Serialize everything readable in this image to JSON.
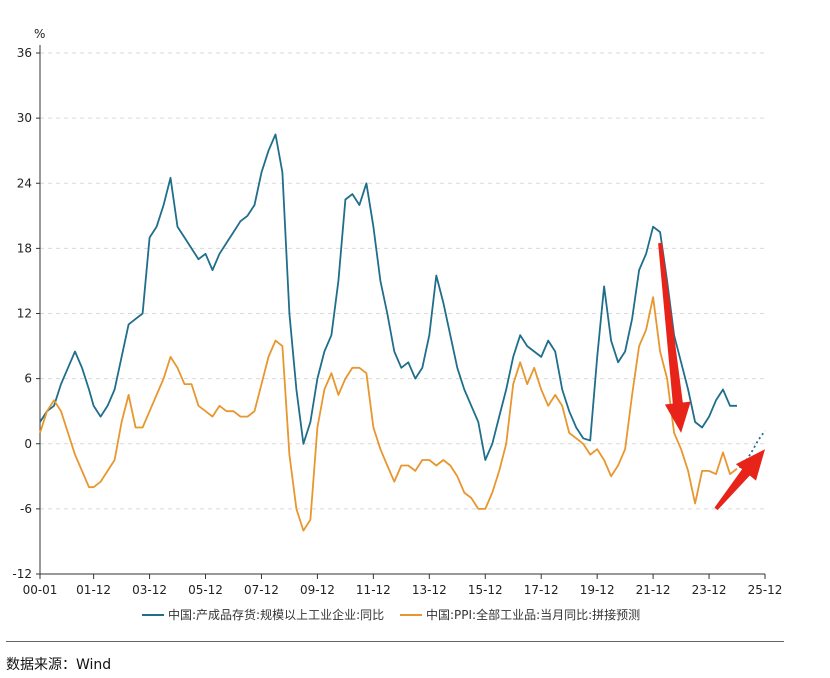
{
  "source": "数据来源：Wind",
  "chart_data": {
    "type": "line",
    "ylabel": "%",
    "ylim": [
      -12,
      36
    ],
    "yticks": [
      -12,
      -6,
      0,
      6,
      12,
      18,
      24,
      30,
      36
    ],
    "xlim": [
      "00-01",
      "25-12"
    ],
    "xticks": [
      "00-01",
      "01-12",
      "03-12",
      "05-12",
      "07-12",
      "09-12",
      "11-12",
      "13-12",
      "15-12",
      "17-12",
      "19-12",
      "21-12",
      "23-12",
      "25-12"
    ],
    "grid": true,
    "legend_position": "bottom",
    "series": [
      {
        "name": "中国:产成品存货:规模以上工业企业:同比",
        "color": "#1f6e8c",
        "points": [
          [
            "2000-01",
            2.0
          ],
          [
            "2000-04",
            3.0
          ],
          [
            "2000-07",
            3.5
          ],
          [
            "2000-10",
            5.5
          ],
          [
            "2001-01",
            7.0
          ],
          [
            "2001-04",
            8.5
          ],
          [
            "2001-07",
            7.0
          ],
          [
            "2001-10",
            5.0
          ],
          [
            "2001-12",
            3.5
          ],
          [
            "2002-03",
            2.5
          ],
          [
            "2002-06",
            3.5
          ],
          [
            "2002-09",
            5.0
          ],
          [
            "2002-12",
            8.0
          ],
          [
            "2003-03",
            11.0
          ],
          [
            "2003-06",
            11.5
          ],
          [
            "2003-09",
            12.0
          ],
          [
            "2003-12",
            19.0
          ],
          [
            "2004-03",
            20.0
          ],
          [
            "2004-06",
            22.0
          ],
          [
            "2004-09",
            24.5
          ],
          [
            "2004-12",
            20.0
          ],
          [
            "2005-03",
            19.0
          ],
          [
            "2005-06",
            18.0
          ],
          [
            "2005-09",
            17.0
          ],
          [
            "2005-12",
            17.5
          ],
          [
            "2006-03",
            16.0
          ],
          [
            "2006-06",
            17.5
          ],
          [
            "2006-09",
            18.5
          ],
          [
            "2006-12",
            19.5
          ],
          [
            "2007-03",
            20.5
          ],
          [
            "2007-06",
            21.0
          ],
          [
            "2007-09",
            22.0
          ],
          [
            "2007-12",
            25.0
          ],
          [
            "2008-03",
            27.0
          ],
          [
            "2008-06",
            28.5
          ],
          [
            "2008-09",
            25.0
          ],
          [
            "2008-12",
            12.0
          ],
          [
            "2009-03",
            5.0
          ],
          [
            "2009-06",
            0.0
          ],
          [
            "2009-09",
            2.0
          ],
          [
            "2009-12",
            6.0
          ],
          [
            "2010-03",
            8.5
          ],
          [
            "2010-06",
            10.0
          ],
          [
            "2010-09",
            15.0
          ],
          [
            "2010-12",
            22.5
          ],
          [
            "2011-03",
            23.0
          ],
          [
            "2011-06",
            22.0
          ],
          [
            "2011-09",
            24.0
          ],
          [
            "2011-12",
            20.0
          ],
          [
            "2012-03",
            15.0
          ],
          [
            "2012-06",
            12.0
          ],
          [
            "2012-09",
            8.5
          ],
          [
            "2012-12",
            7.0
          ],
          [
            "2013-03",
            7.5
          ],
          [
            "2013-06",
            6.0
          ],
          [
            "2013-09",
            7.0
          ],
          [
            "2013-12",
            10.0
          ],
          [
            "2014-03",
            15.5
          ],
          [
            "2014-06",
            13.0
          ],
          [
            "2014-09",
            10.0
          ],
          [
            "2014-12",
            7.0
          ],
          [
            "2015-03",
            5.0
          ],
          [
            "2015-06",
            3.5
          ],
          [
            "2015-09",
            2.0
          ],
          [
            "2015-12",
            -1.5
          ],
          [
            "2016-03",
            0.0
          ],
          [
            "2016-06",
            2.5
          ],
          [
            "2016-09",
            5.0
          ],
          [
            "2016-12",
            8.0
          ],
          [
            "2017-03",
            10.0
          ],
          [
            "2017-06",
            9.0
          ],
          [
            "2017-09",
            8.5
          ],
          [
            "2017-12",
            8.0
          ],
          [
            "2018-03",
            9.5
          ],
          [
            "2018-06",
            8.5
          ],
          [
            "2018-09",
            5.0
          ],
          [
            "2018-12",
            3.0
          ],
          [
            "2019-03",
            1.5
          ],
          [
            "2019-06",
            0.5
          ],
          [
            "2019-09",
            0.3
          ],
          [
            "2019-12",
            8.0
          ],
          [
            "2020-03",
            14.5
          ],
          [
            "2020-06",
            9.5
          ],
          [
            "2020-09",
            7.5
          ],
          [
            "2020-12",
            8.5
          ],
          [
            "2021-03",
            11.5
          ],
          [
            "2021-06",
            16.0
          ],
          [
            "2021-09",
            17.5
          ],
          [
            "2021-12",
            20.0
          ],
          [
            "2022-03",
            19.5
          ],
          [
            "2022-06",
            15.0
          ],
          [
            "2022-09",
            10.0
          ],
          [
            "2022-12",
            7.5
          ],
          [
            "2023-03",
            5.0
          ],
          [
            "2023-06",
            2.0
          ],
          [
            "2023-09",
            1.5
          ],
          [
            "2023-12",
            2.5
          ],
          [
            "2024-03",
            4.0
          ],
          [
            "2024-06",
            5.0
          ],
          [
            "2024-09",
            3.5
          ],
          [
            "2024-12",
            3.5
          ]
        ]
      },
      {
        "name": "中国:PPI:全部工业品:当月同比:拼接预测",
        "color": "#e8962e",
        "points": [
          [
            "2000-01",
            1.0
          ],
          [
            "2000-04",
            3.0
          ],
          [
            "2000-07",
            4.0
          ],
          [
            "2000-10",
            3.0
          ],
          [
            "2001-01",
            1.0
          ],
          [
            "2001-04",
            -1.0
          ],
          [
            "2001-07",
            -2.5
          ],
          [
            "2001-10",
            -4.0
          ],
          [
            "2001-12",
            -4.0
          ],
          [
            "2002-03",
            -3.5
          ],
          [
            "2002-06",
            -2.5
          ],
          [
            "2002-09",
            -1.5
          ],
          [
            "2002-12",
            2.0
          ],
          [
            "2003-03",
            4.5
          ],
          [
            "2003-06",
            1.5
          ],
          [
            "2003-09",
            1.5
          ],
          [
            "2003-12",
            3.0
          ],
          [
            "2004-03",
            4.5
          ],
          [
            "2004-06",
            6.0
          ],
          [
            "2004-09",
            8.0
          ],
          [
            "2004-12",
            7.0
          ],
          [
            "2005-03",
            5.5
          ],
          [
            "2005-06",
            5.5
          ],
          [
            "2005-09",
            3.5
          ],
          [
            "2005-12",
            3.0
          ],
          [
            "2006-03",
            2.5
          ],
          [
            "2006-06",
            3.5
          ],
          [
            "2006-09",
            3.0
          ],
          [
            "2006-12",
            3.0
          ],
          [
            "2007-03",
            2.5
          ],
          [
            "2007-06",
            2.5
          ],
          [
            "2007-09",
            3.0
          ],
          [
            "2007-12",
            5.5
          ],
          [
            "2008-03",
            8.0
          ],
          [
            "2008-06",
            9.5
          ],
          [
            "2008-09",
            9.0
          ],
          [
            "2008-12",
            -1.0
          ],
          [
            "2009-03",
            -6.0
          ],
          [
            "2009-06",
            -8.0
          ],
          [
            "2009-09",
            -7.0
          ],
          [
            "2009-12",
            1.5
          ],
          [
            "2010-03",
            5.0
          ],
          [
            "2010-06",
            6.5
          ],
          [
            "2010-09",
            4.5
          ],
          [
            "2010-12",
            6.0
          ],
          [
            "2011-03",
            7.0
          ],
          [
            "2011-06",
            7.0
          ],
          [
            "2011-09",
            6.5
          ],
          [
            "2011-12",
            1.5
          ],
          [
            "2012-03",
            -0.5
          ],
          [
            "2012-06",
            -2.0
          ],
          [
            "2012-09",
            -3.5
          ],
          [
            "2012-12",
            -2.0
          ],
          [
            "2013-03",
            -2.0
          ],
          [
            "2013-06",
            -2.5
          ],
          [
            "2013-09",
            -1.5
          ],
          [
            "2013-12",
            -1.5
          ],
          [
            "2014-03",
            -2.0
          ],
          [
            "2014-06",
            -1.5
          ],
          [
            "2014-09",
            -2.0
          ],
          [
            "2014-12",
            -3.0
          ],
          [
            "2015-03",
            -4.5
          ],
          [
            "2015-06",
            -5.0
          ],
          [
            "2015-09",
            -6.0
          ],
          [
            "2015-12",
            -6.0
          ],
          [
            "2016-03",
            -4.5
          ],
          [
            "2016-06",
            -2.5
          ],
          [
            "2016-09",
            0.0
          ],
          [
            "2016-12",
            5.5
          ],
          [
            "2017-03",
            7.5
          ],
          [
            "2017-06",
            5.5
          ],
          [
            "2017-09",
            7.0
          ],
          [
            "2017-12",
            5.0
          ],
          [
            "2018-03",
            3.5
          ],
          [
            "2018-06",
            4.5
          ],
          [
            "2018-09",
            3.5
          ],
          [
            "2018-12",
            1.0
          ],
          [
            "2019-03",
            0.5
          ],
          [
            "2019-06",
            0.0
          ],
          [
            "2019-09",
            -1.0
          ],
          [
            "2019-12",
            -0.5
          ],
          [
            "2020-03",
            -1.5
          ],
          [
            "2020-06",
            -3.0
          ],
          [
            "2020-09",
            -2.0
          ],
          [
            "2020-12",
            -0.5
          ],
          [
            "2021-03",
            4.5
          ],
          [
            "2021-06",
            9.0
          ],
          [
            "2021-09",
            10.5
          ],
          [
            "2021-12",
            13.5
          ],
          [
            "2022-03",
            8.5
          ],
          [
            "2022-06",
            6.0
          ],
          [
            "2022-09",
            1.0
          ],
          [
            "2022-12",
            -0.5
          ],
          [
            "2023-03",
            -2.5
          ],
          [
            "2023-06",
            -5.5
          ],
          [
            "2023-09",
            -2.5
          ],
          [
            "2023-12",
            -2.5
          ],
          [
            "2024-03",
            -2.8
          ],
          [
            "2024-06",
            -0.8
          ],
          [
            "2024-09",
            -2.8
          ],
          [
            "2024-12",
            -2.3
          ]
        ]
      }
    ],
    "forecast_series": {
      "color": "#1f6e8c",
      "points": [
        [
          "2025-01",
          -2.2
        ],
        [
          "2025-03",
          -1.8
        ],
        [
          "2025-05",
          -1.2
        ],
        [
          "2025-07",
          -0.5
        ],
        [
          "2025-09",
          0.3
        ],
        [
          "2025-12",
          1.2
        ]
      ]
    },
    "annotations": [
      {
        "type": "arrow",
        "color": "#e8231a",
        "from": [
          "2022-03",
          18.5
        ],
        "to": [
          "2022-12",
          1.0
        ]
      },
      {
        "type": "arrow",
        "color": "#e8231a",
        "from": [
          "2024-03",
          -6.0
        ],
        "to": [
          "2025-12",
          -0.5
        ]
      }
    ]
  }
}
